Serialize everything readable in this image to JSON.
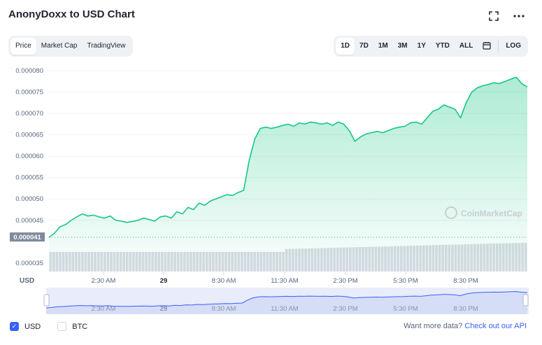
{
  "title": "AnonyDoxx to USD Chart",
  "top_icons": [
    "fullscreen-icon",
    "more-icon"
  ],
  "tabs": [
    "Price",
    "Market Cap",
    "TradingView"
  ],
  "active_tab": "Price",
  "ranges": [
    "1D",
    "7D",
    "1M",
    "3M",
    "1Y",
    "YTD",
    "ALL"
  ],
  "active_range": "1D",
  "log_label": "LOG",
  "watermark": "CoinMarketCap",
  "currency_toggles": [
    {
      "label": "USD",
      "checked": true
    },
    {
      "label": "BTC",
      "checked": false
    }
  ],
  "api_text": "Want more data?",
  "api_link": "Check out our API",
  "colors": {
    "line": "#16c784",
    "accent": "#3861fb",
    "volume": "#d8dbe2",
    "navigator": "#d6ddf7"
  },
  "chart_data": {
    "type": "area",
    "y_axis_label": "USD",
    "ylim": [
      3.3e-05,
      8.1e-05
    ],
    "y_ticks": [
      "0.000080",
      "0.000075",
      "0.000070",
      "0.000065",
      "0.000060",
      "0.000055",
      "0.000050",
      "0.000045",
      "0.000035"
    ],
    "current_price_label": "0.000041",
    "x_ticks": [
      "2:30 AM",
      "29",
      "8:30 AM",
      "11:30 AM",
      "2:30 PM",
      "5:30 PM",
      "8:30 PM"
    ],
    "series": [
      {
        "name": "Price",
        "values": [
          4.1e-05,
          4.2e-05,
          4.35e-05,
          4.4e-05,
          4.5e-05,
          4.58e-05,
          4.65e-05,
          4.6e-05,
          4.62e-05,
          4.58e-05,
          4.55e-05,
          4.6e-05,
          4.5e-05,
          4.48e-05,
          4.45e-05,
          4.47e-05,
          4.5e-05,
          4.55e-05,
          4.52e-05,
          4.48e-05,
          4.58e-05,
          4.6e-05,
          4.55e-05,
          4.7e-05,
          4.65e-05,
          4.8e-05,
          4.75e-05,
          4.9e-05,
          4.85e-05,
          4.95e-05,
          5e-05,
          5.05e-05,
          5.1e-05,
          5.08e-05,
          5.15e-05,
          5.2e-05,
          5.9e-05,
          6.4e-05,
          6.65e-05,
          6.68e-05,
          6.65e-05,
          6.68e-05,
          6.72e-05,
          6.75e-05,
          6.7e-05,
          6.78e-05,
          6.75e-05,
          6.8e-05,
          6.78e-05,
          6.75e-05,
          6.78e-05,
          6.72e-05,
          6.8e-05,
          6.75e-05,
          6.6e-05,
          6.35e-05,
          6.45e-05,
          6.52e-05,
          6.55e-05,
          6.58e-05,
          6.55e-05,
          6.6e-05,
          6.65e-05,
          6.68e-05,
          6.7e-05,
          6.78e-05,
          6.8e-05,
          6.75e-05,
          6.9e-05,
          7.05e-05,
          7.1e-05,
          7.2e-05,
          7.15e-05,
          7.1e-05,
          6.9e-05,
          7.25e-05,
          7.5e-05,
          7.6e-05,
          7.65e-05,
          7.68e-05,
          7.72e-05,
          7.7e-05,
          7.75e-05,
          7.8e-05,
          7.85e-05,
          7.7e-05,
          7.62e-05
        ]
      }
    ]
  }
}
